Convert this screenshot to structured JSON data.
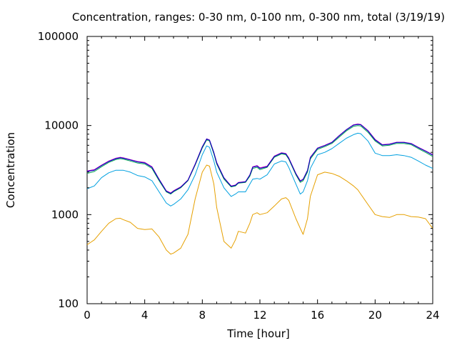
{
  "chart_data": {
    "type": "line",
    "title": "Concentration, ranges: 0-30 nm, 0-100 nm, 0-300 nm, total (3/19/19)",
    "xlabel": "Time [hour]",
    "ylabel": "Concentration",
    "xlim": [
      0,
      24
    ],
    "ylim": [
      100,
      100000
    ],
    "y_scale": "log",
    "grid": false,
    "x_ticks": [
      0,
      4,
      8,
      12,
      16,
      20,
      24
    ],
    "x_tick_labels": [
      "0",
      "4",
      "8",
      "12",
      "16",
      "20",
      "24"
    ],
    "y_ticks": [
      100,
      1000,
      10000,
      100000
    ],
    "y_tick_labels": [
      "100",
      "1000",
      "10000",
      "100000"
    ],
    "x": [
      0,
      0.5,
      1,
      1.5,
      2,
      2.3,
      2.5,
      3,
      3.5,
      4,
      4.5,
      5,
      5.5,
      5.8,
      6,
      6.5,
      7,
      7.5,
      8,
      8.3,
      8.5,
      8.8,
      9,
      9.5,
      10,
      10.3,
      10.5,
      11,
      11.3,
      11.5,
      11.8,
      12,
      12.5,
      13,
      13.5,
      13.8,
      14,
      14.5,
      14.8,
      15,
      15.3,
      15.5,
      16,
      16.5,
      17,
      17.5,
      18,
      18.5,
      18.8,
      19,
      19.5,
      20,
      20.5,
      21,
      21.5,
      22,
      22.5,
      23,
      23.5,
      24
    ],
    "series": [
      {
        "color": "#e6a000",
        "values": [
          460,
          520,
          650,
          800,
          900,
          910,
          880,
          820,
          700,
          680,
          690,
          560,
          400,
          360,
          370,
          420,
          600,
          1500,
          3000,
          3600,
          3500,
          2200,
          1200,
          500,
          420,
          520,
          650,
          620,
          800,
          1000,
          1050,
          1000,
          1050,
          1250,
          1500,
          1550,
          1450,
          900,
          700,
          600,
          900,
          1600,
          2800,
          3000,
          2900,
          2700,
          2400,
          2100,
          1900,
          1700,
          1300,
          1000,
          950,
          930,
          1000,
          1000,
          950,
          940,
          900,
          700
        ]
      },
      {
        "color": "#00a0e0",
        "values": [
          1950,
          2100,
          2600,
          2950,
          3150,
          3150,
          3150,
          3000,
          2750,
          2650,
          2400,
          1800,
          1350,
          1250,
          1300,
          1500,
          1900,
          2800,
          4700,
          5900,
          5700,
          4000,
          3000,
          2000,
          1600,
          1700,
          1800,
          1800,
          2200,
          2500,
          2550,
          2500,
          2800,
          3700,
          4000,
          3900,
          3400,
          2200,
          1700,
          1800,
          2400,
          3300,
          4700,
          5000,
          5500,
          6300,
          7200,
          7900,
          8200,
          8100,
          6700,
          4900,
          4600,
          4600,
          4700,
          4600,
          4400,
          4000,
          3600,
          3300
        ]
      },
      {
        "color": "#00a050",
        "values": [
          2900,
          3050,
          3450,
          3850,
          4150,
          4250,
          4200,
          4000,
          3800,
          3700,
          3300,
          2400,
          1800,
          1700,
          1800,
          2000,
          2400,
          3600,
          5600,
          6900,
          6700,
          4800,
          3700,
          2500,
          2050,
          2100,
          2250,
          2300,
          2700,
          3300,
          3400,
          3200,
          3400,
          4400,
          4800,
          4700,
          4200,
          2800,
          2300,
          2400,
          3000,
          4200,
          5400,
          5800,
          6300,
          7400,
          8700,
          9800,
          10000,
          9900,
          8400,
          6700,
          5900,
          6000,
          6300,
          6300,
          6100,
          5500,
          5000,
          4500
        ]
      },
      {
        "color": "#c000c0",
        "values": [
          3100,
          3200,
          3600,
          4000,
          4300,
          4400,
          4350,
          4150,
          3950,
          3850,
          3450,
          2500,
          1850,
          1750,
          1850,
          2050,
          2450,
          3700,
          5800,
          7100,
          6900,
          5000,
          3850,
          2600,
          2100,
          2150,
          2300,
          2350,
          2800,
          3450,
          3550,
          3350,
          3500,
          4550,
          4950,
          4850,
          4350,
          2900,
          2400,
          2500,
          3150,
          4400,
          5600,
          6000,
          6500,
          7700,
          9000,
          10200,
          10400,
          10300,
          8800,
          7000,
          6100,
          6200,
          6500,
          6500,
          6300,
          5700,
          5200,
          4700
        ]
      },
      {
        "color": "#0000c0",
        "values": [
          3050,
          3150,
          3550,
          3950,
          4250,
          4350,
          4300,
          4100,
          3900,
          3800,
          3400,
          2480,
          1830,
          1730,
          1830,
          2030,
          2430,
          3650,
          5750,
          7050,
          6850,
          4950,
          3800,
          2580,
          2080,
          2130,
          2280,
          2330,
          2780,
          3400,
          3500,
          3300,
          3450,
          4500,
          4900,
          4800,
          4300,
          2870,
          2370,
          2480,
          3120,
          4350,
          5550,
          5950,
          6450,
          7650,
          8950,
          10100,
          10300,
          10200,
          8700,
          6900,
          6050,
          6150,
          6450,
          6450,
          6250,
          5650,
          5150,
          4650
        ]
      }
    ]
  }
}
